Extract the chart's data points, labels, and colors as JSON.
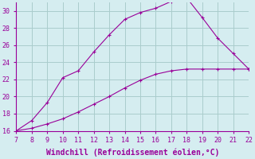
{
  "xlabel": "Windchill (Refroidissement éolien,°C)",
  "line1_x": [
    7,
    8,
    9,
    10,
    11,
    12,
    13,
    14,
    15,
    16,
    17,
    18,
    19,
    20,
    21,
    22
  ],
  "line1_y": [
    16.0,
    16.3,
    16.8,
    17.4,
    18.2,
    19.1,
    20.0,
    21.0,
    21.9,
    22.6,
    23.0,
    23.2,
    23.2,
    23.2,
    23.2,
    23.2
  ],
  "line2_x": [
    7,
    8,
    9,
    10,
    11,
    12,
    13,
    14,
    15,
    16,
    17,
    18,
    19,
    20,
    21,
    22
  ],
  "line2_y": [
    16.0,
    17.2,
    19.3,
    22.2,
    23.0,
    25.2,
    27.2,
    29.0,
    29.8,
    30.3,
    31.1,
    31.5,
    29.2,
    26.8,
    25.0,
    23.2
  ],
  "line_color": "#990099",
  "bg_color": "#d5edf0",
  "grid_color": "#aacccc",
  "xlim": [
    7,
    22
  ],
  "ylim": [
    16,
    31
  ],
  "xticks": [
    7,
    8,
    9,
    10,
    11,
    12,
    13,
    14,
    15,
    16,
    17,
    18,
    19,
    20,
    21,
    22
  ],
  "yticks": [
    16,
    18,
    20,
    22,
    24,
    26,
    28,
    30
  ],
  "tick_fontsize": 6,
  "xlabel_fontsize": 7,
  "marker": "+"
}
